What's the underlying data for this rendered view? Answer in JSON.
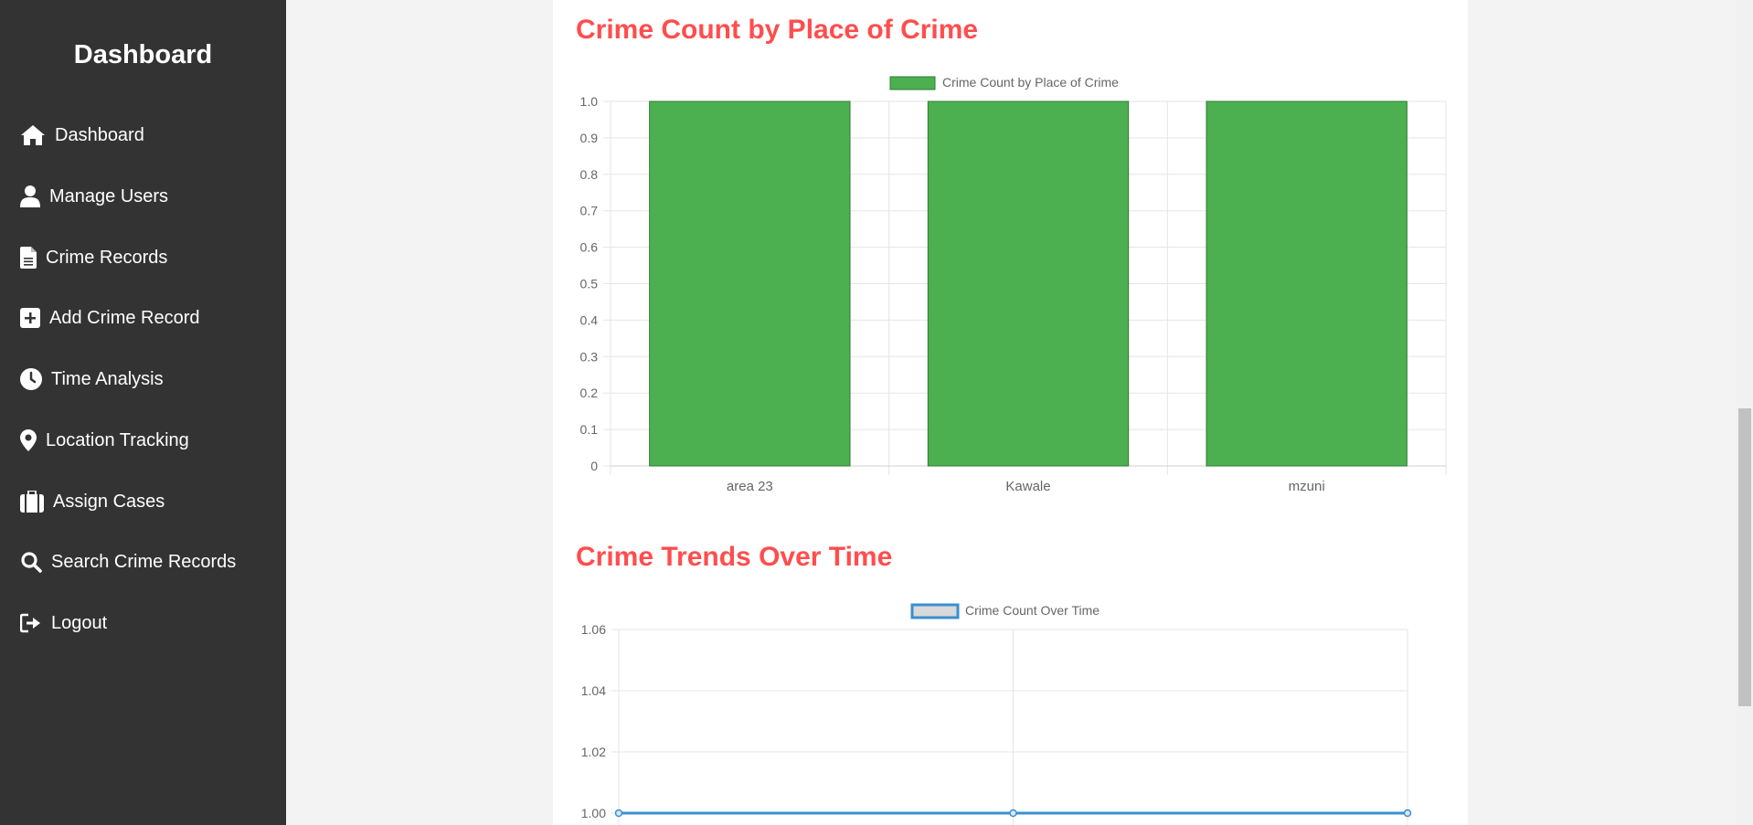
{
  "sidebar": {
    "title": "Dashboard",
    "items": [
      {
        "label": "Dashboard",
        "icon": "home-icon"
      },
      {
        "label": "Manage Users",
        "icon": "user-icon"
      },
      {
        "label": "Crime Records",
        "icon": "file-icon"
      },
      {
        "label": "Add Crime Record",
        "icon": "plus-square-icon"
      },
      {
        "label": "Time Analysis",
        "icon": "clock-icon"
      },
      {
        "label": "Location Tracking",
        "icon": "map-pin-icon"
      },
      {
        "label": "Assign Cases",
        "icon": "briefcase-icon"
      },
      {
        "label": "Search Crime Records",
        "icon": "search-icon"
      },
      {
        "label": "Logout",
        "icon": "logout-icon"
      }
    ]
  },
  "sections": {
    "place_title": "Crime Count by Place of Crime",
    "trend_title": "Crime Trends Over Time"
  },
  "colors": {
    "sidebar_bg": "#333333",
    "title_red": "#ff4d4d",
    "bar_green": "#4caf50",
    "line_blue": "#3a8fd1"
  },
  "chart_data": [
    {
      "type": "bar",
      "legend": [
        "Crime Count by Place of Crime"
      ],
      "categories": [
        "area 23",
        "Kawale",
        "mzuni"
      ],
      "series": [
        {
          "name": "Crime Count by Place of Crime",
          "values": [
            1,
            1,
            1
          ]
        }
      ],
      "yticks": [
        "1.0",
        "0.9",
        "0.8",
        "0.7",
        "0.6",
        "0.5",
        "0.4",
        "0.3",
        "0.2",
        "0.1",
        "0"
      ],
      "ylim": [
        0,
        1
      ],
      "grid": true,
      "legend_position": "top"
    },
    {
      "type": "line",
      "legend": [
        "Crime Count Over Time"
      ],
      "series": [
        {
          "name": "Crime Count Over Time",
          "values": [
            1,
            1,
            1
          ]
        }
      ],
      "yticks": [
        "1.06",
        "1.04",
        "1.02",
        "1.00"
      ],
      "ylim": [
        1.0,
        1.06
      ],
      "grid": true,
      "legend_position": "top"
    }
  ]
}
